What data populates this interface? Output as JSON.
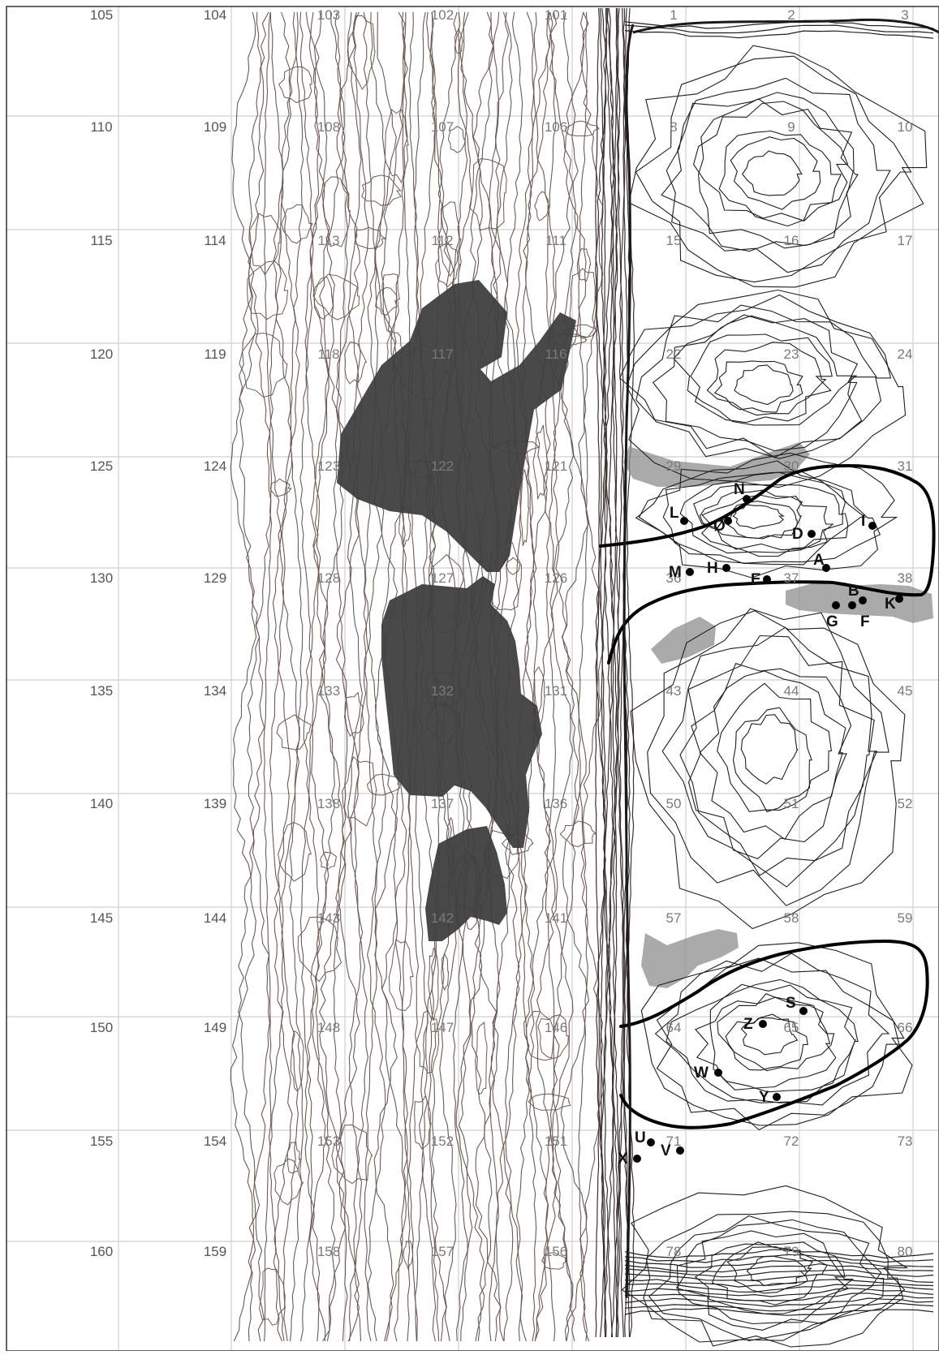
{
  "map": {
    "colors": {
      "background": "#ffffff",
      "grid": "#cfcfcf",
      "contour": "#6b5a55",
      "contour_dark": "#1e1e1e",
      "boundary": "#000000",
      "dark_patch": "#3f3f3f",
      "light_patch": "#8d8d8d",
      "label": "#555555"
    },
    "grid_cells": [
      "105",
      "104",
      "103",
      "102",
      "101",
      "1",
      "2",
      "3",
      "110",
      "109",
      "108",
      "107",
      "106",
      "8",
      "9",
      "10",
      "115",
      "114",
      "113",
      "112",
      "111",
      "15",
      "16",
      "17",
      "120",
      "119",
      "118",
      "117",
      "116",
      "22",
      "23",
      "24",
      "125",
      "124",
      "123",
      "122",
      "121",
      "29",
      "30",
      "31",
      "130",
      "129",
      "128",
      "127",
      "126",
      "36",
      "37",
      "38",
      "135",
      "134",
      "133",
      "132",
      "131",
      "43",
      "44",
      "45",
      "140",
      "139",
      "138",
      "137",
      "136",
      "50",
      "51",
      "52",
      "145",
      "144",
      "143",
      "142",
      "141",
      "57",
      "58",
      "59",
      "150",
      "149",
      "148",
      "147",
      "146",
      "64",
      "65",
      "66",
      "155",
      "154",
      "153",
      "152",
      "151",
      "71",
      "72",
      "73",
      "160",
      "159",
      "158",
      "157",
      "156",
      "78",
      "79",
      "80"
    ],
    "points": [
      "N",
      "L",
      "Ø",
      "D",
      "I",
      "M",
      "H",
      "E",
      "A",
      "B",
      "G",
      "F",
      "K",
      "S",
      "Z",
      "W",
      "Y",
      "U",
      "V",
      "X"
    ]
  }
}
